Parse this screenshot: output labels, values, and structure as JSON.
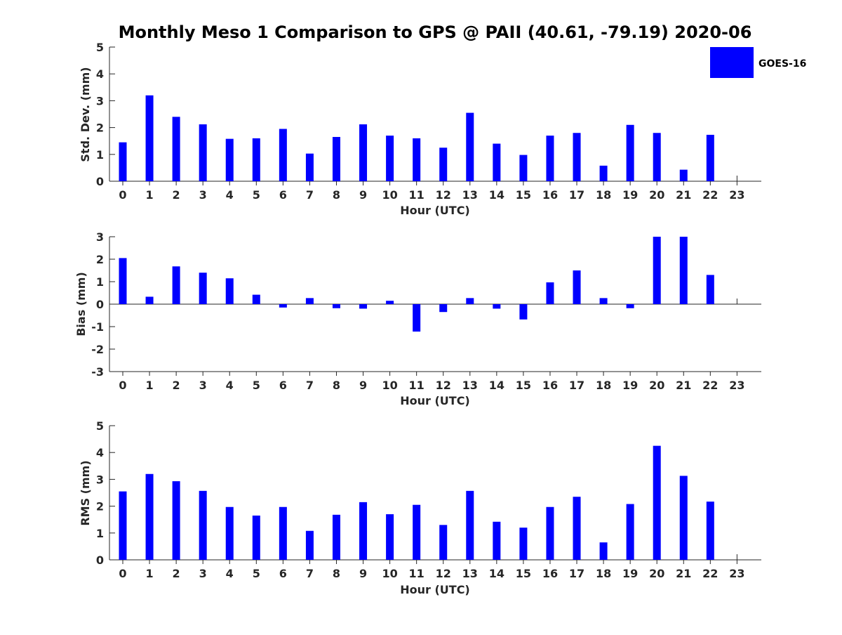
{
  "chart_data": {
    "title": "Monthly Meso 1 Comparison to GPS @ PAII (40.61, -79.19) 2020-06",
    "legend": {
      "label": "GOES-16",
      "color": "#0000ff",
      "placement": "top-right"
    },
    "bar_color": "#0000ff",
    "panels": [
      {
        "type": "bar",
        "name": "std",
        "xlabel": "Hour (UTC)",
        "ylabel": "Std. Dev. (mm)",
        "ylim": [
          0,
          5
        ],
        "yticks": [
          0,
          1,
          2,
          3,
          4,
          5
        ],
        "categories": [
          0,
          1,
          2,
          3,
          4,
          5,
          6,
          7,
          8,
          9,
          10,
          11,
          12,
          13,
          14,
          15,
          16,
          17,
          18,
          19,
          20,
          21,
          22,
          23
        ],
        "values": [
          1.45,
          3.2,
          2.4,
          2.12,
          1.58,
          1.6,
          1.95,
          1.03,
          1.65,
          2.12,
          1.7,
          1.6,
          1.25,
          2.55,
          1.4,
          0.98,
          1.7,
          1.8,
          0.58,
          2.1,
          1.8,
          0.43,
          1.73,
          null
        ]
      },
      {
        "type": "bar",
        "name": "bias",
        "xlabel": "Hour (UTC)",
        "ylabel": "Bias (mm)",
        "ylim": [
          -3,
          3
        ],
        "yticks": [
          -3,
          -2,
          -1,
          0,
          1,
          2,
          3
        ],
        "categories": [
          0,
          1,
          2,
          3,
          4,
          5,
          6,
          7,
          8,
          9,
          10,
          11,
          12,
          13,
          14,
          15,
          16,
          17,
          18,
          19,
          20,
          21,
          22,
          23
        ],
        "values": [
          2.05,
          0.33,
          1.68,
          1.4,
          1.15,
          0.42,
          -0.15,
          0.27,
          -0.18,
          -0.2,
          0.15,
          -1.22,
          -0.35,
          0.27,
          -0.2,
          -0.68,
          0.97,
          1.5,
          0.27,
          -0.18,
          3.0,
          3.0,
          1.3,
          null
        ]
      },
      {
        "type": "bar",
        "name": "rms",
        "xlabel": "Hour (UTC)",
        "ylabel": "RMS (mm)",
        "ylim": [
          0,
          5
        ],
        "yticks": [
          0,
          1,
          2,
          3,
          4,
          5
        ],
        "categories": [
          0,
          1,
          2,
          3,
          4,
          5,
          6,
          7,
          8,
          9,
          10,
          11,
          12,
          13,
          14,
          15,
          16,
          17,
          18,
          19,
          20,
          21,
          22,
          23
        ],
        "values": [
          2.55,
          3.2,
          2.93,
          2.57,
          1.97,
          1.65,
          1.97,
          1.08,
          1.68,
          2.15,
          1.7,
          2.05,
          1.3,
          2.57,
          1.42,
          1.2,
          1.97,
          2.35,
          0.65,
          2.08,
          4.25,
          3.13,
          2.17,
          null
        ]
      }
    ]
  }
}
